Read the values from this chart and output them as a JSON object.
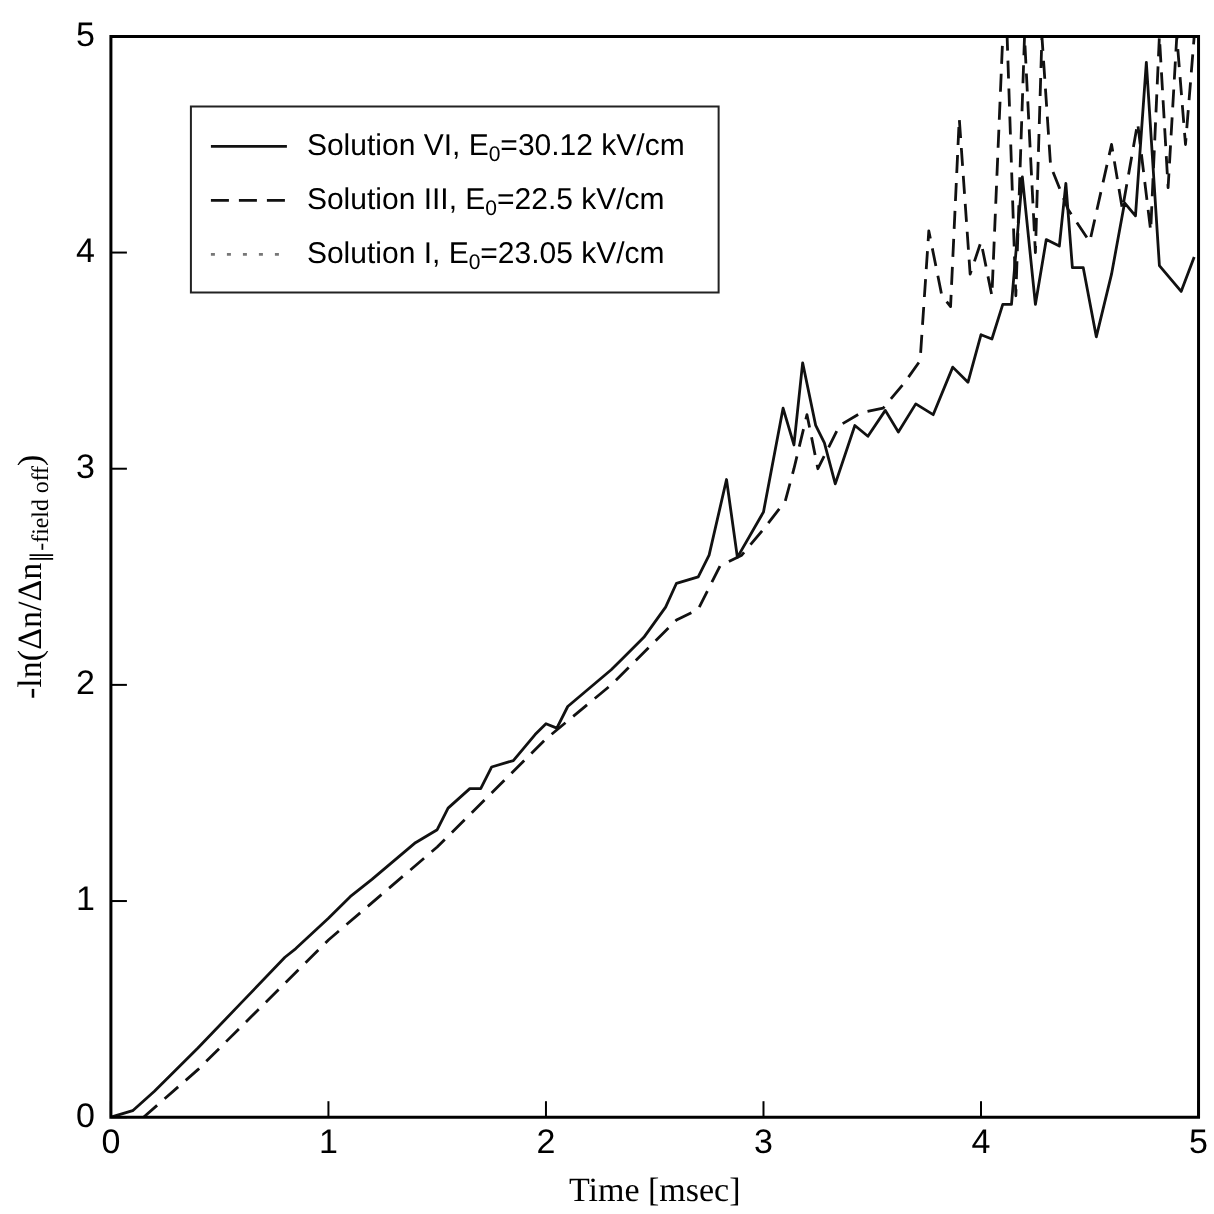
{
  "chart_data": {
    "type": "line",
    "xlabel": "Time [msec]",
    "ylabel": "-ln(Δn/Δn$_{∥-field off}$)",
    "xlim": [
      0,
      5
    ],
    "ylim": [
      0,
      5
    ],
    "xticks": [
      0,
      1,
      2,
      3,
      4,
      5
    ],
    "yticks": [
      0,
      1,
      2,
      3,
      4,
      5
    ],
    "grid": false,
    "legend": "top left",
    "marker": "none",
    "series": [
      {
        "name": "Solution VI, E$_{0}$=30.12 kV/cm",
        "color": "#111111",
        "line_style": "solid",
        "x": [
          0,
          0.1,
          0.2,
          0.4,
          0.6,
          0.8,
          0.85,
          1.0,
          1.1,
          1.2,
          1.4,
          1.5,
          1.55,
          1.65,
          1.7,
          1.75,
          1.85,
          1.95,
          2.0,
          2.05,
          2.1,
          2.3,
          2.35,
          2.45,
          2.55,
          2.6,
          2.7,
          2.75,
          2.83,
          2.88,
          3.0,
          3.09,
          3.14,
          3.18,
          3.24,
          3.28,
          3.33,
          3.42,
          3.48,
          3.56,
          3.62,
          3.7,
          3.78,
          3.87,
          3.94,
          4.0,
          4.05,
          4.1,
          4.14,
          4.19,
          4.25,
          4.3,
          4.36,
          4.39,
          4.42,
          4.47,
          4.53,
          4.6,
          4.66,
          4.71,
          4.76,
          4.82,
          4.92,
          4.98
        ],
        "values": [
          0,
          0.03,
          0.12,
          0.32,
          0.53,
          0.74,
          0.78,
          0.92,
          1.02,
          1.1,
          1.27,
          1.33,
          1.43,
          1.52,
          1.52,
          1.62,
          1.65,
          1.77,
          1.82,
          1.8,
          1.9,
          2.07,
          2.12,
          2.22,
          2.36,
          2.47,
          2.5,
          2.6,
          2.95,
          2.59,
          2.8,
          3.28,
          3.11,
          3.49,
          3.2,
          3.12,
          2.93,
          3.2,
          3.15,
          3.27,
          3.17,
          3.3,
          3.25,
          3.47,
          3.4,
          3.62,
          3.6,
          3.76,
          3.76,
          4.35,
          3.76,
          4.06,
          4.03,
          4.32,
          3.93,
          3.93,
          3.61,
          3.9,
          4.23,
          4.17,
          4.88,
          3.94,
          3.82,
          3.98
        ]
      },
      {
        "name": "Solution III, E$_{0}$=22.5 kV/cm",
        "color": "#111111",
        "line_style": "dashed",
        "x": [
          0.15,
          0.4,
          1.0,
          1.5,
          2.0,
          2.3,
          2.5,
          2.6,
          2.7,
          2.8,
          2.9,
          3.0,
          3.1,
          3.14,
          3.2,
          3.25,
          3.35,
          3.45,
          3.55,
          3.65,
          3.72,
          3.76,
          3.82,
          3.86,
          3.9,
          3.95,
          4.0,
          4.05,
          4.1,
          4.12,
          4.16,
          4.2,
          4.25,
          4.28,
          4.32,
          4.4,
          4.5,
          4.6,
          4.65,
          4.72,
          4.78,
          4.82,
          4.86,
          4.9,
          4.94,
          4.98
        ],
        "values": [
          0,
          0.22,
          0.82,
          1.25,
          1.75,
          2.0,
          2.2,
          2.3,
          2.35,
          2.55,
          2.6,
          2.72,
          2.85,
          3.0,
          3.25,
          3.0,
          3.2,
          3.26,
          3.28,
          3.4,
          3.5,
          4.1,
          3.8,
          3.75,
          4.62,
          3.9,
          4.05,
          3.8,
          5,
          5,
          3.8,
          5,
          4.0,
          5,
          4.4,
          4.2,
          4.05,
          4.5,
          4.2,
          4.6,
          4.1,
          5,
          4.3,
          5,
          4.5,
          5
        ]
      },
      {
        "name": "Solution I, E$_{0}$=23.05 kV/cm",
        "color": "#777777",
        "line_style": "dotted"
      }
    ]
  }
}
